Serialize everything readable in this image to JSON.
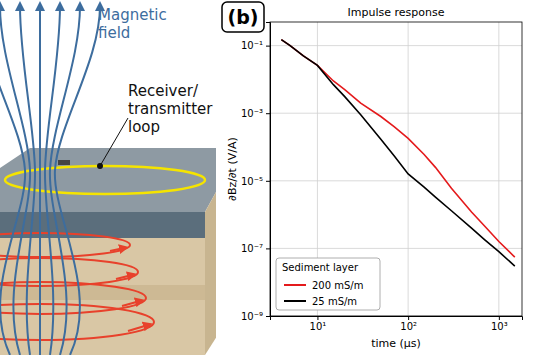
{
  "chart_data": {
    "type": "line",
    "title": "Impulse response",
    "annotations": [
      "(b)"
    ],
    "x_label": "time (μs)",
    "y_label": "∂Bz/∂t (V/A)",
    "log": true,
    "grid": true,
    "legend": "lower left",
    "legend_title": "Sediment layer",
    "xlim": [
      3,
      1800
    ],
    "xticks": [
      {
        "value": 10,
        "label": "10¹"
      },
      {
        "value": 100,
        "label": "10²"
      },
      {
        "value": 1000,
        "label": "10³"
      }
    ],
    "ylim": [
      1e-09,
      0.5
    ],
    "yticks": [
      {
        "value": 1e-09,
        "label": "10⁻⁹"
      },
      {
        "value": 1e-07,
        "label": "10⁻⁷"
      },
      {
        "value": 1e-05,
        "label": "10⁻⁵"
      },
      {
        "value": 0.001,
        "label": "10⁻³"
      },
      {
        "value": 0.1,
        "label": "10⁻¹"
      }
    ],
    "x": [
      4,
      5,
      7,
      10,
      15,
      20,
      30,
      50,
      70,
      100,
      150,
      200,
      300,
      500,
      700,
      1000,
      1500
    ],
    "series": [
      {
        "name": "200 mS/m",
        "color": "#e41a1c",
        "values": [
          0.15,
          0.1,
          0.05,
          0.026,
          0.009,
          0.005,
          0.002,
          0.0008,
          0.0004,
          0.00018,
          6e-05,
          2.5e-05,
          6e-06,
          1.2e-06,
          4.5e-07,
          1.6e-07,
          5.5e-08
        ]
      },
      {
        "name": "25 mS/m",
        "color": "#000000",
        "values": [
          0.15,
          0.1,
          0.05,
          0.026,
          0.007,
          0.0031,
          0.0009,
          0.00017,
          5.5e-05,
          1.6e-05,
          6.5e-06,
          3.3e-06,
          1.3e-06,
          4e-07,
          1.8e-07,
          8e-08,
          3e-08
        ]
      }
    ]
  },
  "diagram": {
    "labels": [
      {
        "lines": [
          "Magnetic",
          "field"
        ]
      },
      {
        "lines": [
          "Receiver/",
          "transmitter",
          "loop"
        ]
      }
    ]
  }
}
